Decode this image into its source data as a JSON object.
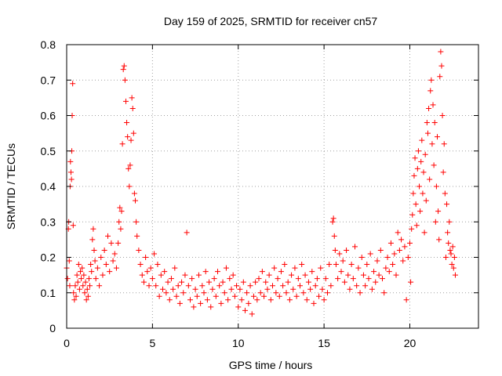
{
  "chart_data": {
    "type": "scatter",
    "title": "Day 159 of 2025, SRMTID for receiver cn57",
    "xlabel": "GPS time / hours",
    "ylabel": "SRMTID / TECUs",
    "xlim": [
      0,
      24
    ],
    "ylim": [
      0,
      0.8
    ],
    "xticks": [
      0,
      5,
      10,
      15,
      20
    ],
    "yticks": [
      0,
      0.1,
      0.2,
      0.3,
      0.4,
      0.5,
      0.6,
      0.7,
      0.8
    ],
    "grid": true,
    "marker": "+",
    "color": "#ff0000",
    "series": [
      {
        "name": "SRMTID",
        "points": [
          [
            0.0,
            0.17
          ],
          [
            0.05,
            0.14
          ],
          [
            0.1,
            0.28
          ],
          [
            0.12,
            0.3
          ],
          [
            0.15,
            0.19
          ],
          [
            0.18,
            0.12
          ],
          [
            0.2,
            0.4
          ],
          [
            0.22,
            0.47
          ],
          [
            0.25,
            0.44
          ],
          [
            0.28,
            0.42
          ],
          [
            0.3,
            0.5
          ],
          [
            0.32,
            0.6
          ],
          [
            0.35,
            0.69
          ],
          [
            0.38,
            0.29
          ],
          [
            0.4,
            0.1
          ],
          [
            0.45,
            0.08
          ],
          [
            0.5,
            0.12
          ],
          [
            0.55,
            0.09
          ],
          [
            0.6,
            0.15
          ],
          [
            0.65,
            0.13
          ],
          [
            0.7,
            0.18
          ],
          [
            0.75,
            0.11
          ],
          [
            0.8,
            0.16
          ],
          [
            0.85,
            0.14
          ],
          [
            0.9,
            0.17
          ],
          [
            0.95,
            0.12
          ],
          [
            1.0,
            0.15
          ],
          [
            1.05,
            0.1
          ],
          [
            1.1,
            0.13
          ],
          [
            1.15,
            0.08
          ],
          [
            1.2,
            0.11
          ],
          [
            1.25,
            0.09
          ],
          [
            1.3,
            0.14
          ],
          [
            1.35,
            0.12
          ],
          [
            1.4,
            0.18
          ],
          [
            1.45,
            0.16
          ],
          [
            1.5,
            0.25
          ],
          [
            1.55,
            0.28
          ],
          [
            1.6,
            0.22
          ],
          [
            1.65,
            0.19
          ],
          [
            1.7,
            0.14
          ],
          [
            1.8,
            0.17
          ],
          [
            1.9,
            0.12
          ],
          [
            2.0,
            0.2
          ],
          [
            2.1,
            0.15
          ],
          [
            2.2,
            0.22
          ],
          [
            2.3,
            0.18
          ],
          [
            2.4,
            0.26
          ],
          [
            2.5,
            0.16
          ],
          [
            2.6,
            0.24
          ],
          [
            2.7,
            0.19
          ],
          [
            2.8,
            0.21
          ],
          [
            2.9,
            0.17
          ],
          [
            3.0,
            0.24
          ],
          [
            3.05,
            0.3
          ],
          [
            3.1,
            0.34
          ],
          [
            3.15,
            0.28
          ],
          [
            3.2,
            0.33
          ],
          [
            3.25,
            0.52
          ],
          [
            3.3,
            0.73
          ],
          [
            3.35,
            0.74
          ],
          [
            3.4,
            0.7
          ],
          [
            3.45,
            0.64
          ],
          [
            3.5,
            0.58
          ],
          [
            3.55,
            0.54
          ],
          [
            3.6,
            0.45
          ],
          [
            3.65,
            0.4
          ],
          [
            3.7,
            0.46
          ],
          [
            3.75,
            0.53
          ],
          [
            3.8,
            0.65
          ],
          [
            3.85,
            0.62
          ],
          [
            3.9,
            0.55
          ],
          [
            3.95,
            0.38
          ],
          [
            4.0,
            0.36
          ],
          [
            4.05,
            0.3
          ],
          [
            4.1,
            0.26
          ],
          [
            4.2,
            0.22
          ],
          [
            4.3,
            0.18
          ],
          [
            4.4,
            0.15
          ],
          [
            4.5,
            0.13
          ],
          [
            4.6,
            0.2
          ],
          [
            4.7,
            0.16
          ],
          [
            4.8,
            0.12
          ],
          [
            4.9,
            0.17
          ],
          [
            5.0,
            0.14
          ],
          [
            5.1,
            0.21
          ],
          [
            5.2,
            0.12
          ],
          [
            5.3,
            0.18
          ],
          [
            5.4,
            0.09
          ],
          [
            5.5,
            0.15
          ],
          [
            5.6,
            0.11
          ],
          [
            5.7,
            0.16
          ],
          [
            5.8,
            0.1
          ],
          [
            5.9,
            0.13
          ],
          [
            6.0,
            0.08
          ],
          [
            6.1,
            0.14
          ],
          [
            6.2,
            0.11
          ],
          [
            6.3,
            0.17
          ],
          [
            6.4,
            0.09
          ],
          [
            6.5,
            0.12
          ],
          [
            6.6,
            0.07
          ],
          [
            6.7,
            0.13
          ],
          [
            6.8,
            0.1
          ],
          [
            6.9,
            0.15
          ],
          [
            7.0,
            0.27
          ],
          [
            7.1,
            0.12
          ],
          [
            7.2,
            0.08
          ],
          [
            7.3,
            0.14
          ],
          [
            7.4,
            0.06
          ],
          [
            7.5,
            0.11
          ],
          [
            7.6,
            0.09
          ],
          [
            7.7,
            0.15
          ],
          [
            7.8,
            0.07
          ],
          [
            7.9,
            0.12
          ],
          [
            8.0,
            0.1
          ],
          [
            8.1,
            0.16
          ],
          [
            8.2,
            0.08
          ],
          [
            8.3,
            0.13
          ],
          [
            8.4,
            0.06
          ],
          [
            8.5,
            0.11
          ],
          [
            8.6,
            0.14
          ],
          [
            8.7,
            0.09
          ],
          [
            8.8,
            0.16
          ],
          [
            8.9,
            0.12
          ],
          [
            9.0,
            0.07
          ],
          [
            9.1,
            0.13
          ],
          [
            9.2,
            0.1
          ],
          [
            9.3,
            0.17
          ],
          [
            9.4,
            0.08
          ],
          [
            9.5,
            0.14
          ],
          [
            9.6,
            0.11
          ],
          [
            9.7,
            0.15
          ],
          [
            9.8,
            0.09
          ],
          [
            9.9,
            0.12
          ],
          [
            10.0,
            0.06
          ],
          [
            10.1,
            0.11
          ],
          [
            10.2,
            0.08
          ],
          [
            10.3,
            0.13
          ],
          [
            10.4,
            0.05
          ],
          [
            10.5,
            0.1
          ],
          [
            10.6,
            0.07
          ],
          [
            10.7,
            0.12
          ],
          [
            10.8,
            0.04
          ],
          [
            10.9,
            0.09
          ],
          [
            11.0,
            0.13
          ],
          [
            11.1,
            0.08
          ],
          [
            11.2,
            0.14
          ],
          [
            11.3,
            0.1
          ],
          [
            11.4,
            0.16
          ],
          [
            11.5,
            0.09
          ],
          [
            11.6,
            0.13
          ],
          [
            11.7,
            0.11
          ],
          [
            11.8,
            0.15
          ],
          [
            11.9,
            0.08
          ],
          [
            12.0,
            0.12
          ],
          [
            12.1,
            0.17
          ],
          [
            12.2,
            0.1
          ],
          [
            12.3,
            0.14
          ],
          [
            12.4,
            0.09
          ],
          [
            12.5,
            0.16
          ],
          [
            12.6,
            0.12
          ],
          [
            12.7,
            0.18
          ],
          [
            12.8,
            0.1
          ],
          [
            12.9,
            0.13
          ],
          [
            13.0,
            0.08
          ],
          [
            13.1,
            0.15
          ],
          [
            13.2,
            0.11
          ],
          [
            13.3,
            0.17
          ],
          [
            13.4,
            0.09
          ],
          [
            13.5,
            0.14
          ],
          [
            13.6,
            0.12
          ],
          [
            13.7,
            0.18
          ],
          [
            13.8,
            0.1
          ],
          [
            13.9,
            0.15
          ],
          [
            14.0,
            0.08
          ],
          [
            14.1,
            0.13
          ],
          [
            14.2,
            0.11
          ],
          [
            14.3,
            0.16
          ],
          [
            14.4,
            0.07
          ],
          [
            14.5,
            0.12
          ],
          [
            14.6,
            0.14
          ],
          [
            14.7,
            0.09
          ],
          [
            14.8,
            0.17
          ],
          [
            14.9,
            0.11
          ],
          [
            15.0,
            0.08
          ],
          [
            15.1,
            0.14
          ],
          [
            15.2,
            0.1
          ],
          [
            15.3,
            0.18
          ],
          [
            15.4,
            0.12
          ],
          [
            15.5,
            0.3
          ],
          [
            15.55,
            0.31
          ],
          [
            15.6,
            0.26
          ],
          [
            15.65,
            0.22
          ],
          [
            15.7,
            0.18
          ],
          [
            15.8,
            0.14
          ],
          [
            15.9,
            0.21
          ],
          [
            16.0,
            0.16
          ],
          [
            16.1,
            0.19
          ],
          [
            16.2,
            0.13
          ],
          [
            16.3,
            0.22
          ],
          [
            16.4,
            0.15
          ],
          [
            16.5,
            0.11
          ],
          [
            16.6,
            0.18
          ],
          [
            16.7,
            0.14
          ],
          [
            16.8,
            0.23
          ],
          [
            16.9,
            0.12
          ],
          [
            17.0,
            0.17
          ],
          [
            17.1,
            0.1
          ],
          [
            17.2,
            0.2
          ],
          [
            17.3,
            0.15
          ],
          [
            17.4,
            0.12
          ],
          [
            17.5,
            0.18
          ],
          [
            17.6,
            0.14
          ],
          [
            17.7,
            0.21
          ],
          [
            17.8,
            0.11
          ],
          [
            17.9,
            0.16
          ],
          [
            18.0,
            0.13
          ],
          [
            18.1,
            0.19
          ],
          [
            18.2,
            0.15
          ],
          [
            18.3,
            0.22
          ],
          [
            18.4,
            0.14
          ],
          [
            18.5,
            0.1
          ],
          [
            18.6,
            0.17
          ],
          [
            18.7,
            0.2
          ],
          [
            18.8,
            0.16
          ],
          [
            18.9,
            0.24
          ],
          [
            19.0,
            0.18
          ],
          [
            19.1,
            0.21
          ],
          [
            19.2,
            0.15
          ],
          [
            19.3,
            0.27
          ],
          [
            19.4,
            0.22
          ],
          [
            19.5,
            0.25
          ],
          [
            19.6,
            0.19
          ],
          [
            19.7,
            0.23
          ],
          [
            19.8,
            0.08
          ],
          [
            19.9,
            0.2
          ],
          [
            20.0,
            0.24
          ],
          [
            20.05,
            0.13
          ],
          [
            20.1,
            0.28
          ],
          [
            20.15,
            0.32
          ],
          [
            20.2,
            0.38
          ],
          [
            20.25,
            0.43
          ],
          [
            20.3,
            0.48
          ],
          [
            20.35,
            0.35
          ],
          [
            20.4,
            0.29
          ],
          [
            20.45,
            0.45
          ],
          [
            20.5,
            0.5
          ],
          [
            20.55,
            0.4
          ],
          [
            20.6,
            0.33
          ],
          [
            20.65,
            0.47
          ],
          [
            20.7,
            0.53
          ],
          [
            20.75,
            0.38
          ],
          [
            20.8,
            0.44
          ],
          [
            20.85,
            0.27
          ],
          [
            20.9,
            0.49
          ],
          [
            20.95,
            0.36
          ],
          [
            21.0,
            0.58
          ],
          [
            21.05,
            0.55
          ],
          [
            21.1,
            0.62
          ],
          [
            21.15,
            0.42
          ],
          [
            21.2,
            0.67
          ],
          [
            21.25,
            0.7
          ],
          [
            21.3,
            0.52
          ],
          [
            21.35,
            0.63
          ],
          [
            21.4,
            0.46
          ],
          [
            21.45,
            0.58
          ],
          [
            21.5,
            0.3
          ],
          [
            21.55,
            0.4
          ],
          [
            21.6,
            0.54
          ],
          [
            21.65,
            0.33
          ],
          [
            21.7,
            0.25
          ],
          [
            21.75,
            0.71
          ],
          [
            21.8,
            0.78
          ],
          [
            21.85,
            0.74
          ],
          [
            21.9,
            0.6
          ],
          [
            21.95,
            0.44
          ],
          [
            22.0,
            0.52
          ],
          [
            22.05,
            0.38
          ],
          [
            22.1,
            0.2
          ],
          [
            22.15,
            0.35
          ],
          [
            22.2,
            0.27
          ],
          [
            22.25,
            0.24
          ],
          [
            22.3,
            0.3
          ],
          [
            22.35,
            0.22
          ],
          [
            22.4,
            0.21
          ],
          [
            22.45,
            0.18
          ],
          [
            22.5,
            0.23
          ],
          [
            22.55,
            0.17
          ],
          [
            22.6,
            0.2
          ],
          [
            22.65,
            0.15
          ]
        ]
      }
    ]
  }
}
